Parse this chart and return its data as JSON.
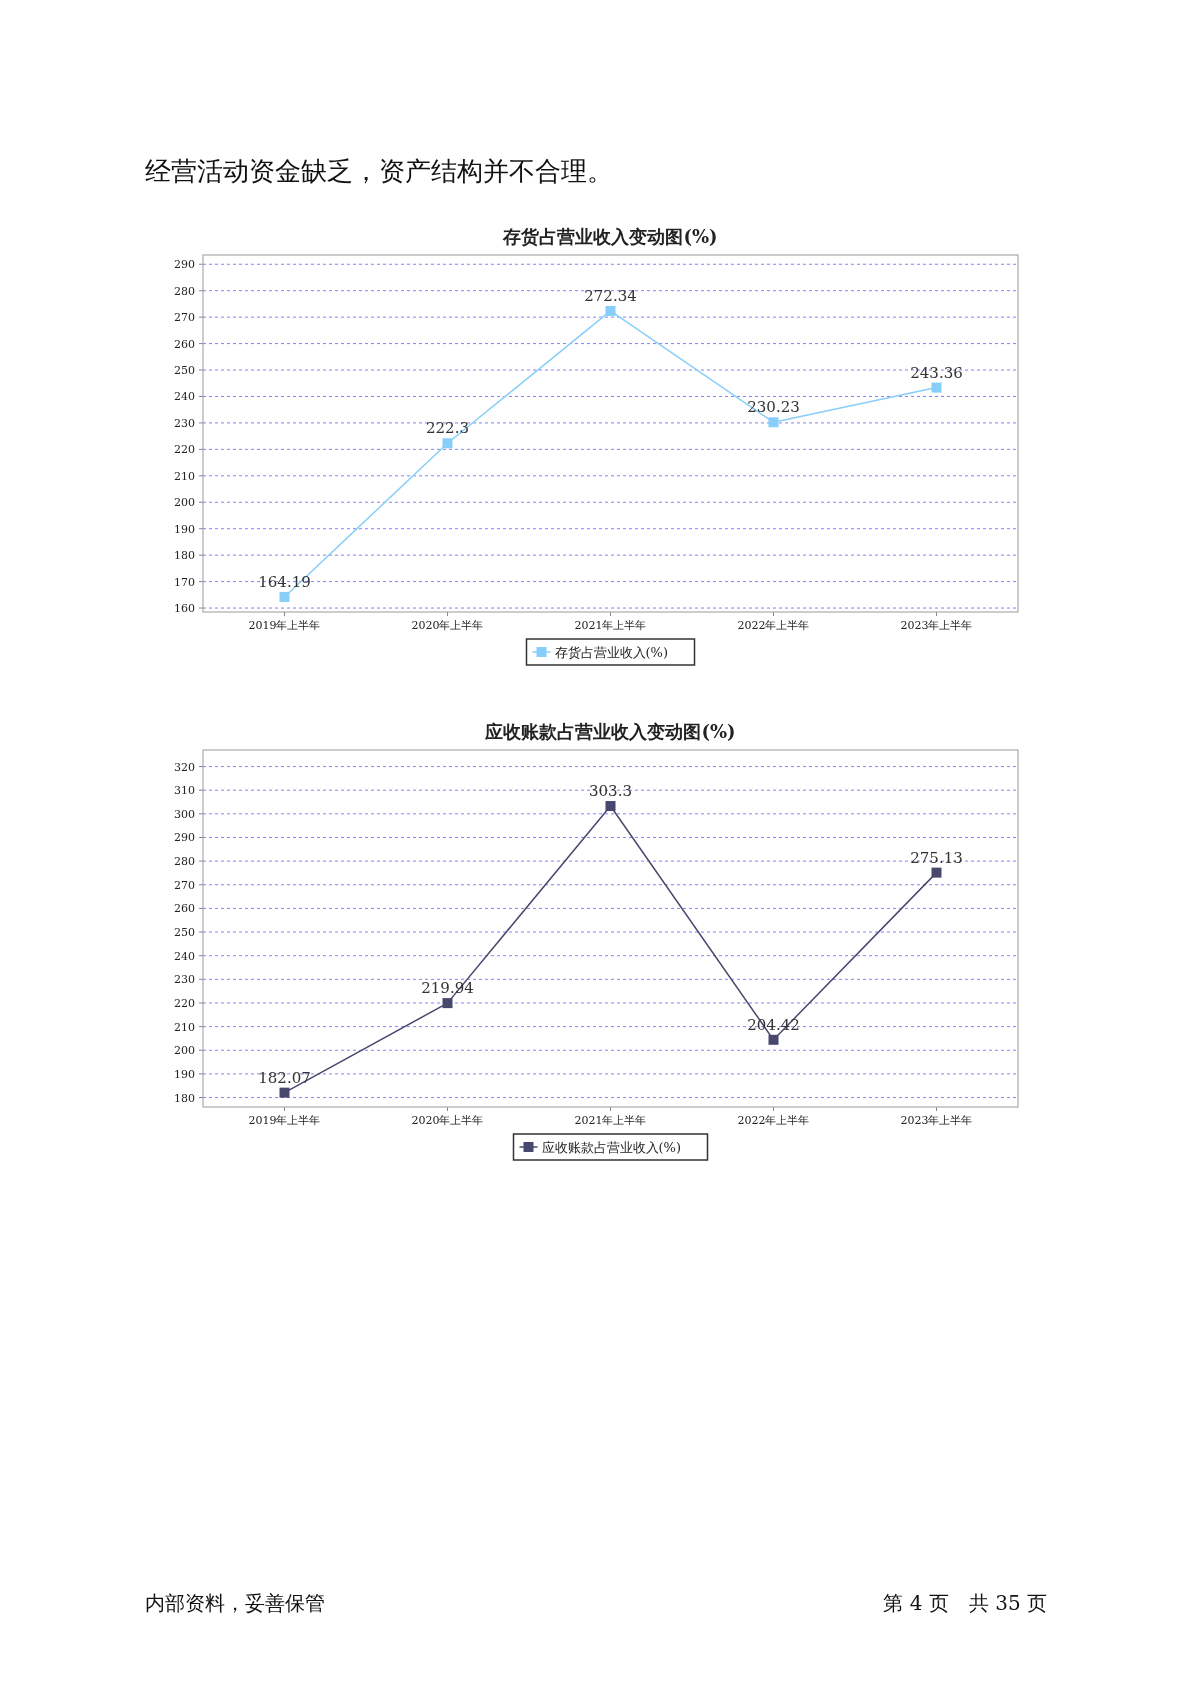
{
  "chart_data": [
    {
      "type": "line",
      "title": "存货占营业收入变动图(%)",
      "categories": [
        "2019年上半年",
        "2020年上半年",
        "2021年上半年",
        "2022年上半年",
        "2023年上半年"
      ],
      "series": [
        {
          "name": "存货占营业收入(%)",
          "color": "#87cefa",
          "values": [
            164.19,
            222.3,
            272.34,
            230.23,
            243.36
          ]
        }
      ],
      "ylim": [
        158.5,
        293.5
      ],
      "yticks": [
        160,
        170,
        180,
        190,
        200,
        210,
        220,
        230,
        240,
        250,
        260,
        270,
        280,
        290
      ],
      "grid": "y",
      "legend": "bottom",
      "marker": "square",
      "data_labels": true,
      "annotations": [
        "经营活动资金缺乏，资产结构并不合理。"
      ]
    },
    {
      "type": "line",
      "title": "应收账款占营业收入变动图(%)",
      "categories": [
        "2019年上半年",
        "2020年上半年",
        "2021年上半年",
        "2022年上半年",
        "2023年上半年"
      ],
      "series": [
        {
          "name": "应收账款占营业收入(%)",
          "color": "#48486e",
          "values": [
            182.07,
            219.94,
            303.3,
            204.42,
            275.13
          ]
        }
      ],
      "ylim": [
        176,
        327
      ],
      "yticks": [
        180,
        190,
        200,
        210,
        220,
        230,
        240,
        250,
        260,
        270,
        280,
        290,
        300,
        310,
        320
      ],
      "grid": "y",
      "legend": "bottom",
      "marker": "square",
      "data_labels": true,
      "annotations": [
        "内部资料，妥善保管",
        "第 4 页　共 35 页"
      ]
    }
  ]
}
